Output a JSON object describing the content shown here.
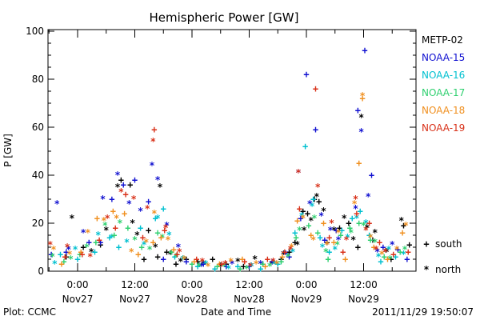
{
  "chart_data": {
    "type": "scatter",
    "title": "Hemispheric Power [GW]",
    "ylabel": "P [GW]",
    "xlabel": "Date and Time",
    "ylim": [
      0,
      100
    ],
    "yticks": [
      "0",
      "20",
      "40",
      "60",
      "80",
      "100"
    ],
    "xlim": [
      -0.35,
      3.0
    ],
    "xticks": [
      {
        "pos": 0.0,
        "time": "0:00",
        "date": "Nov27"
      },
      {
        "pos": 0.5,
        "time": "12:00",
        "date": "Nov27"
      },
      {
        "pos": 1.0,
        "time": "0:00",
        "date": "Nov28"
      },
      {
        "pos": 1.5,
        "time": "12:00",
        "date": "Nov28"
      },
      {
        "pos": 2.0,
        "time": "0:00",
        "date": "Nov29"
      },
      {
        "pos": 2.5,
        "time": "12:00",
        "date": "Nov29"
      }
    ],
    "marker_legend": [
      {
        "symbol": "+",
        "label": "south"
      },
      {
        "symbol": "*",
        "label": "north"
      }
    ],
    "series": [
      {
        "name": "METP-02",
        "color": "#000000",
        "south": [
          [
            -0.3,
            3
          ],
          [
            -0.1,
            6
          ],
          [
            0.05,
            10
          ],
          [
            0.2,
            11
          ],
          [
            0.38,
            38
          ],
          [
            0.46,
            36
          ],
          [
            0.58,
            5
          ],
          [
            0.62,
            17
          ],
          [
            0.7,
            6
          ],
          [
            0.78,
            8
          ],
          [
            0.86,
            3
          ],
          [
            0.95,
            5
          ],
          [
            1.05,
            4
          ],
          [
            1.18,
            5
          ],
          [
            1.3,
            3
          ],
          [
            1.45,
            2
          ],
          [
            1.62,
            3
          ],
          [
            1.78,
            5
          ],
          [
            1.85,
            8
          ],
          [
            1.9,
            12
          ],
          [
            1.97,
            25
          ],
          [
            2.01,
            24
          ],
          [
            2.07,
            30
          ],
          [
            2.11,
            29
          ],
          [
            2.18,
            12
          ],
          [
            2.29,
            18
          ],
          [
            2.37,
            20
          ],
          [
            2.45,
            10
          ],
          [
            2.58,
            13
          ],
          [
            2.74,
            5
          ],
          [
            2.85,
            19
          ],
          [
            2.9,
            11
          ]
        ],
        "north": [
          [
            -0.25,
            5
          ],
          [
            -0.05,
            22
          ],
          [
            0.12,
            8
          ],
          [
            0.25,
            17
          ],
          [
            0.35,
            35
          ],
          [
            0.48,
            20
          ],
          [
            0.52,
            15
          ],
          [
            0.68,
            10
          ],
          [
            0.72,
            35
          ],
          [
            0.81,
            7
          ],
          [
            0.9,
            4
          ],
          [
            1.1,
            3
          ],
          [
            1.25,
            2
          ],
          [
            1.4,
            4
          ],
          [
            1.55,
            5
          ],
          [
            1.7,
            3
          ],
          [
            1.8,
            7
          ],
          [
            1.92,
            11
          ],
          [
            1.98,
            17
          ],
          [
            2.04,
            21
          ],
          [
            2.09,
            31
          ],
          [
            2.15,
            25
          ],
          [
            2.24,
            17
          ],
          [
            2.33,
            22
          ],
          [
            2.41,
            13
          ],
          [
            2.48,
            64
          ],
          [
            2.53,
            18
          ],
          [
            2.6,
            16
          ],
          [
            2.7,
            8
          ],
          [
            2.83,
            21
          ]
        ]
      },
      {
        "name": "NOAA-15",
        "color": "#1010d0",
        "south": [
          [
            -0.23,
            7
          ],
          [
            -0.1,
            8
          ],
          [
            0.1,
            12
          ],
          [
            0.2,
            12
          ],
          [
            0.3,
            30
          ],
          [
            0.4,
            36
          ],
          [
            0.5,
            38
          ],
          [
            0.62,
            29
          ],
          [
            0.75,
            5
          ],
          [
            0.95,
            4
          ],
          [
            1.1,
            3
          ],
          [
            1.3,
            2
          ],
          [
            1.5,
            2
          ],
          [
            1.7,
            4
          ],
          [
            1.85,
            6
          ],
          [
            1.95,
            22
          ],
          [
            2.0,
            82
          ],
          [
            2.08,
            59
          ],
          [
            2.16,
            13
          ],
          [
            2.26,
            17
          ],
          [
            2.45,
            67
          ],
          [
            2.51,
            92
          ],
          [
            2.57,
            40
          ],
          [
            2.67,
            10
          ],
          [
            2.8,
            9
          ],
          [
            2.88,
            5
          ]
        ],
        "north": [
          [
            -0.18,
            28
          ],
          [
            -0.08,
            9
          ],
          [
            0.05,
            16
          ],
          [
            0.22,
            30
          ],
          [
            0.35,
            40
          ],
          [
            0.45,
            28
          ],
          [
            0.55,
            25
          ],
          [
            0.65,
            44
          ],
          [
            0.7,
            38
          ],
          [
            0.78,
            19
          ],
          [
            0.88,
            10
          ],
          [
            1.08,
            2
          ],
          [
            1.35,
            3
          ],
          [
            1.6,
            3
          ],
          [
            1.82,
            7
          ],
          [
            1.93,
            41
          ],
          [
            2.03,
            28
          ],
          [
            2.13,
            23
          ],
          [
            2.21,
            17
          ],
          [
            2.28,
            13
          ],
          [
            2.43,
            26
          ],
          [
            2.48,
            58
          ],
          [
            2.54,
            31
          ],
          [
            2.62,
            8
          ],
          [
            2.75,
            11
          ]
        ]
      },
      {
        "name": "NOAA-16",
        "color": "#00c0d0",
        "south": [
          [
            -0.28,
            4
          ],
          [
            -0.15,
            7
          ],
          [
            0.0,
            5
          ],
          [
            0.15,
            8
          ],
          [
            0.28,
            14
          ],
          [
            0.36,
            10
          ],
          [
            0.55,
            18
          ],
          [
            0.68,
            22
          ],
          [
            0.75,
            26
          ],
          [
            0.85,
            6
          ],
          [
            1.05,
            2
          ],
          [
            1.2,
            1
          ],
          [
            1.4,
            2
          ],
          [
            1.6,
            1
          ],
          [
            1.75,
            3
          ],
          [
            1.9,
            16
          ],
          [
            1.99,
            52
          ],
          [
            2.06,
            30
          ],
          [
            2.12,
            14
          ],
          [
            2.2,
            8
          ],
          [
            2.31,
            17
          ],
          [
            2.4,
            22
          ],
          [
            2.47,
            25
          ],
          [
            2.55,
            15
          ],
          [
            2.65,
            4
          ],
          [
            2.78,
            6
          ]
        ],
        "north": [
          [
            -0.2,
            3
          ],
          [
            -0.02,
            9
          ],
          [
            0.18,
            15
          ],
          [
            0.3,
            14
          ],
          [
            0.43,
            12
          ],
          [
            0.58,
            11
          ],
          [
            0.7,
            22
          ],
          [
            0.8,
            15
          ],
          [
            0.92,
            5
          ],
          [
            1.12,
            3
          ],
          [
            1.32,
            1
          ],
          [
            1.52,
            2
          ],
          [
            1.72,
            3
          ],
          [
            1.88,
            8
          ],
          [
            1.96,
            23
          ],
          [
            2.05,
            27
          ],
          [
            2.14,
            10
          ],
          [
            2.25,
            9
          ],
          [
            2.36,
            14
          ],
          [
            2.44,
            22
          ],
          [
            2.52,
            20
          ],
          [
            2.63,
            6
          ],
          [
            2.72,
            9
          ],
          [
            2.85,
            7
          ]
        ]
      },
      {
        "name": "NOAA-17",
        "color": "#30d070",
        "south": [
          [
            -0.26,
            2
          ],
          [
            -0.12,
            4
          ],
          [
            0.02,
            7
          ],
          [
            0.16,
            12
          ],
          [
            0.32,
            15
          ],
          [
            0.44,
            18
          ],
          [
            0.56,
            10
          ],
          [
            0.7,
            16
          ],
          [
            0.82,
            8
          ],
          [
            1.0,
            3
          ],
          [
            1.22,
            2
          ],
          [
            1.42,
            1
          ],
          [
            1.62,
            3
          ],
          [
            1.78,
            4
          ],
          [
            1.91,
            14
          ],
          [
            2.02,
            19
          ],
          [
            2.1,
            16
          ],
          [
            2.19,
            5
          ],
          [
            2.3,
            15
          ],
          [
            2.38,
            18
          ],
          [
            2.46,
            20
          ],
          [
            2.56,
            13
          ],
          [
            2.68,
            6
          ],
          [
            2.82,
            8
          ]
        ],
        "north": [
          [
            -0.22,
            6
          ],
          [
            -0.06,
            5
          ],
          [
            0.08,
            10
          ],
          [
            0.24,
            19
          ],
          [
            0.37,
            20
          ],
          [
            0.5,
            13
          ],
          [
            0.63,
            9
          ],
          [
            0.74,
            14
          ],
          [
            0.86,
            6
          ],
          [
            1.06,
            2
          ],
          [
            1.28,
            2
          ],
          [
            1.48,
            1
          ],
          [
            1.68,
            2
          ],
          [
            1.84,
            6
          ],
          [
            1.94,
            17
          ],
          [
            2.07,
            22
          ],
          [
            2.17,
            8
          ],
          [
            2.27,
            11
          ],
          [
            2.39,
            16
          ],
          [
            2.5,
            19
          ],
          [
            2.6,
            12
          ],
          [
            2.73,
            5
          ],
          [
            2.86,
            9
          ]
        ]
      },
      {
        "name": "NOAA-18",
        "color": "#f09020",
        "south": [
          [
            -0.27,
            6
          ],
          [
            -0.14,
            3
          ],
          [
            0.03,
            8
          ],
          [
            0.17,
            22
          ],
          [
            0.31,
            25
          ],
          [
            0.41,
            24
          ],
          [
            0.53,
            7
          ],
          [
            0.66,
            12
          ],
          [
            0.73,
            14
          ],
          [
            0.84,
            9
          ],
          [
            1.02,
            4
          ],
          [
            1.24,
            3
          ],
          [
            1.44,
            5
          ],
          [
            1.64,
            2
          ],
          [
            1.79,
            6
          ],
          [
            1.92,
            21
          ],
          [
            2.04,
            15
          ],
          [
            2.15,
            20
          ],
          [
            2.24,
            12
          ],
          [
            2.34,
            5
          ],
          [
            2.46,
            45
          ],
          [
            2.49,
            72
          ],
          [
            2.59,
            10
          ],
          [
            2.71,
            5
          ],
          [
            2.84,
            16
          ]
        ],
        "north": [
          [
            -0.21,
            9
          ],
          [
            -0.07,
            7
          ],
          [
            0.09,
            16
          ],
          [
            0.23,
            21
          ],
          [
            0.34,
            22
          ],
          [
            0.47,
            8
          ],
          [
            0.6,
            12
          ],
          [
            0.67,
            24
          ],
          [
            0.79,
            13
          ],
          [
            0.93,
            5
          ],
          [
            1.14,
            2
          ],
          [
            1.34,
            4
          ],
          [
            1.56,
            3
          ],
          [
            1.74,
            3
          ],
          [
            1.87,
            10
          ],
          [
            1.97,
            22
          ],
          [
            2.06,
            13
          ],
          [
            2.18,
            11
          ],
          [
            2.28,
            16
          ],
          [
            2.42,
            28
          ],
          [
            2.49,
            73
          ],
          [
            2.56,
            14
          ],
          [
            2.66,
            7
          ],
          [
            2.79,
            9
          ],
          [
            2.87,
            19
          ]
        ]
      },
      {
        "name": "NOAA-19",
        "color": "#d83018",
        "south": [
          [
            -0.29,
            10
          ],
          [
            -0.11,
            6
          ],
          [
            0.04,
            7
          ],
          [
            0.19,
            13
          ],
          [
            0.33,
            18
          ],
          [
            0.42,
            32
          ],
          [
            0.57,
            14
          ],
          [
            0.67,
            59
          ],
          [
            0.76,
            17
          ],
          [
            0.87,
            7
          ],
          [
            1.04,
            5
          ],
          [
            1.26,
            3
          ],
          [
            1.46,
            4
          ],
          [
            1.66,
            5
          ],
          [
            1.81,
            8
          ],
          [
            1.94,
            26
          ],
          [
            2.08,
            76
          ],
          [
            2.2,
            14
          ],
          [
            2.32,
            8
          ],
          [
            2.44,
            24
          ],
          [
            2.55,
            20
          ],
          [
            2.64,
            12
          ],
          [
            2.76,
            7
          ],
          [
            2.89,
            8
          ]
        ],
        "north": [
          [
            -0.24,
            11
          ],
          [
            -0.09,
            10
          ],
          [
            0.11,
            6
          ],
          [
            0.26,
            22
          ],
          [
            0.38,
            33
          ],
          [
            0.49,
            30
          ],
          [
            0.61,
            26
          ],
          [
            0.66,
            54
          ],
          [
            0.77,
            18
          ],
          [
            0.89,
            8
          ],
          [
            1.09,
            4
          ],
          [
            1.29,
            3
          ],
          [
            1.51,
            2
          ],
          [
            1.71,
            4
          ],
          [
            1.86,
            9
          ],
          [
            1.93,
            41
          ],
          [
            2.1,
            35
          ],
          [
            2.22,
            20
          ],
          [
            2.35,
            13
          ],
          [
            2.43,
            30
          ],
          [
            2.52,
            17
          ],
          [
            2.61,
            9
          ],
          [
            2.69,
            8
          ],
          [
            2.95,
            42
          ]
        ]
      }
    ]
  },
  "footer": {
    "plot_credit": "Plot: CCMC",
    "timestamp": "2011/11/29 19:50:07"
  }
}
